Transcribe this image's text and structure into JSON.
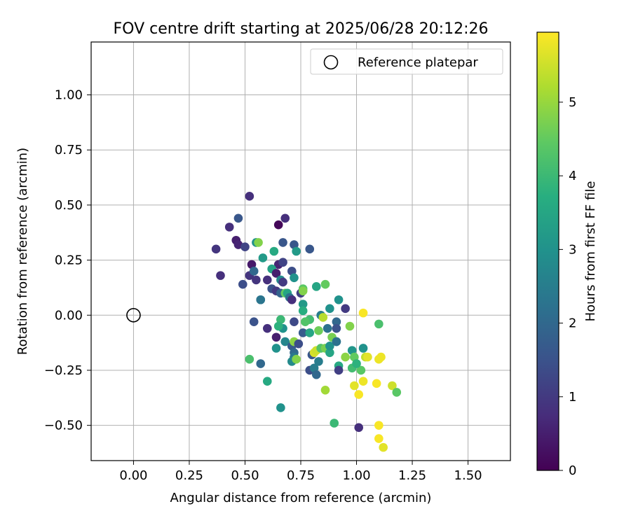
{
  "chart_data": {
    "type": "scatter",
    "title": "FOV centre drift starting at 2025/06/28 20:12:26",
    "xlabel": "Angular distance from reference (arcmin)",
    "ylabel": "Rotation from reference (arcmin)",
    "xlim": [
      -0.19,
      1.69
    ],
    "ylim": [
      -0.66,
      1.24
    ],
    "xticks": [
      0.0,
      0.25,
      0.5,
      0.75,
      1.0,
      1.25,
      1.5
    ],
    "xtick_labels": [
      "0.00",
      "0.25",
      "0.50",
      "0.75",
      "1.00",
      "1.25",
      "1.50"
    ],
    "yticks": [
      -0.5,
      -0.25,
      0.0,
      0.25,
      0.5,
      0.75,
      1.0
    ],
    "ytick_labels": [
      "−0.50",
      "−0.25",
      "0.00",
      "0.25",
      "0.50",
      "0.75",
      "1.00"
    ],
    "grid": true,
    "legend": {
      "placement": "top-right",
      "label": "Reference platepar"
    },
    "colorbar": {
      "label": "Hours from first FF file",
      "range": [
        0,
        5.95
      ],
      "ticks": [
        0,
        1,
        2,
        3,
        4,
        5
      ],
      "tick_labels": [
        "0",
        "1",
        "2",
        "3",
        "4",
        "5"
      ],
      "colormap": "viridis"
    },
    "reference_point": {
      "x": 0.0,
      "y": 0.0
    },
    "points": [
      [
        0.52,
        0.54,
        0.8
      ],
      [
        0.47,
        0.44,
        1.6
      ],
      [
        0.43,
        0.4,
        0.8
      ],
      [
        0.65,
        0.41,
        0.1
      ],
      [
        0.68,
        0.44,
        0.8
      ],
      [
        0.46,
        0.34,
        0.5
      ],
      [
        0.47,
        0.32,
        0.6
      ],
      [
        0.5,
        0.31,
        1.2
      ],
      [
        0.37,
        0.3,
        0.9
      ],
      [
        0.39,
        0.18,
        0.8
      ],
      [
        0.55,
        0.33,
        3.0
      ],
      [
        0.56,
        0.33,
        4.8
      ],
      [
        0.67,
        0.33,
        1.6
      ],
      [
        0.72,
        0.32,
        1.6
      ],
      [
        0.79,
        0.3,
        1.6
      ],
      [
        0.73,
        0.29,
        3.2
      ],
      [
        0.63,
        0.29,
        3.6
      ],
      [
        0.58,
        0.26,
        3.2
      ],
      [
        0.53,
        0.23,
        0.4
      ],
      [
        0.65,
        0.23,
        0.6
      ],
      [
        0.67,
        0.24,
        1.2
      ],
      [
        0.52,
        0.18,
        0.9
      ],
      [
        0.54,
        0.2,
        2.0
      ],
      [
        0.55,
        0.16,
        0.9
      ],
      [
        0.49,
        0.14,
        1.4
      ],
      [
        0.6,
        0.16,
        0.8
      ],
      [
        0.62,
        0.21,
        3.4
      ],
      [
        0.64,
        0.19,
        0.5
      ],
      [
        0.66,
        0.16,
        2.8
      ],
      [
        0.67,
        0.15,
        1.0
      ],
      [
        0.71,
        0.2,
        1.4
      ],
      [
        0.72,
        0.17,
        3.0
      ],
      [
        0.62,
        0.12,
        1.5
      ],
      [
        0.64,
        0.11,
        1.0
      ],
      [
        0.66,
        0.1,
        1.9
      ],
      [
        0.68,
        0.1,
        4.5
      ],
      [
        0.69,
        0.1,
        3.5
      ],
      [
        0.7,
        0.08,
        2.2
      ],
      [
        0.71,
        0.07,
        0.8
      ],
      [
        0.57,
        0.07,
        2.2
      ],
      [
        0.57,
        0.07,
        2.3
      ],
      [
        0.75,
        0.1,
        1.1
      ],
      [
        0.76,
        0.12,
        4.4
      ],
      [
        0.76,
        0.11,
        4.8
      ],
      [
        0.82,
        0.13,
        3.5
      ],
      [
        0.86,
        0.14,
        4.5
      ],
      [
        0.76,
        0.05,
        3.2
      ],
      [
        0.76,
        0.02,
        3.7
      ],
      [
        0.79,
        -0.02,
        4.1
      ],
      [
        0.77,
        -0.03,
        4.3
      ],
      [
        0.88,
        0.03,
        3.0
      ],
      [
        0.84,
        0.0,
        2.5
      ],
      [
        0.85,
        -0.01,
        5.3
      ],
      [
        0.92,
        0.07,
        3.0
      ],
      [
        0.95,
        0.03,
        1.0
      ],
      [
        0.54,
        -0.03,
        1.5
      ],
      [
        0.6,
        -0.06,
        0.8
      ],
      [
        0.64,
        -0.1,
        0.5
      ],
      [
        0.66,
        -0.02,
        4.0
      ],
      [
        0.67,
        -0.06,
        3.0
      ],
      [
        0.65,
        -0.05,
        3.8
      ],
      [
        0.72,
        -0.03,
        1.3
      ],
      [
        0.76,
        -0.08,
        1.7
      ],
      [
        0.79,
        -0.08,
        3.5
      ],
      [
        0.83,
        -0.07,
        4.6
      ],
      [
        0.87,
        -0.06,
        2.2
      ],
      [
        0.91,
        -0.03,
        2.0
      ],
      [
        0.91,
        -0.06,
        1.5
      ],
      [
        0.97,
        -0.05,
        4.8
      ],
      [
        1.03,
        0.01,
        5.9
      ],
      [
        1.1,
        -0.04,
        4.2
      ],
      [
        0.64,
        -0.15,
        3.0
      ],
      [
        0.68,
        -0.12,
        2.7
      ],
      [
        0.71,
        -0.14,
        1.7
      ],
      [
        0.72,
        -0.12,
        4.9
      ],
      [
        0.72,
        -0.17,
        2.0
      ],
      [
        0.74,
        -0.13,
        1.4
      ],
      [
        0.72,
        -0.19,
        2.4
      ],
      [
        0.71,
        -0.21,
        2.8
      ],
      [
        0.73,
        -0.2,
        4.8
      ],
      [
        0.8,
        -0.18,
        1.6
      ],
      [
        0.81,
        -0.17,
        5.6
      ],
      [
        0.82,
        -0.16,
        5.5
      ],
      [
        0.84,
        -0.15,
        4.3
      ],
      [
        0.86,
        -0.15,
        4.7
      ],
      [
        0.88,
        -0.17,
        3.5
      ],
      [
        0.88,
        -0.14,
        3.0
      ],
      [
        0.89,
        -0.1,
        4.7
      ],
      [
        0.91,
        -0.12,
        3.3
      ],
      [
        0.91,
        -0.12,
        2.2
      ],
      [
        0.95,
        -0.19,
        4.9
      ],
      [
        0.98,
        -0.16,
        3.1
      ],
      [
        0.99,
        -0.19,
        4.5
      ],
      [
        1.03,
        -0.15,
        3.0
      ],
      [
        1.04,
        -0.19,
        5.4
      ],
      [
        1.05,
        -0.19,
        5.7
      ],
      [
        1.1,
        -0.2,
        5.8
      ],
      [
        1.11,
        -0.19,
        5.8
      ],
      [
        0.57,
        -0.22,
        2.0
      ],
      [
        0.52,
        -0.2,
        4.2
      ],
      [
        0.6,
        -0.3,
        3.6
      ],
      [
        0.79,
        -0.25,
        1.4
      ],
      [
        0.81,
        -0.24,
        2.5
      ],
      [
        0.82,
        -0.27,
        2.0
      ],
      [
        0.83,
        -0.21,
        2.5
      ],
      [
        0.92,
        -0.23,
        3.6
      ],
      [
        0.92,
        -0.25,
        1.1
      ],
      [
        0.98,
        -0.24,
        4.1
      ],
      [
        1.02,
        -0.25,
        4.4
      ],
      [
        1.0,
        -0.22,
        3.8
      ],
      [
        1.03,
        -0.3,
        5.8
      ],
      [
        0.99,
        -0.32,
        5.7
      ],
      [
        1.09,
        -0.31,
        5.9
      ],
      [
        1.16,
        -0.32,
        5.5
      ],
      [
        1.18,
        -0.35,
        4.4
      ],
      [
        0.86,
        -0.34,
        5.1
      ],
      [
        1.01,
        -0.36,
        5.9
      ],
      [
        0.66,
        -0.42,
        3.0
      ],
      [
        0.9,
        -0.49,
        4.0
      ],
      [
        1.01,
        -0.51,
        0.8
      ],
      [
        1.1,
        -0.5,
        5.9
      ],
      [
        1.1,
        -0.56,
        5.9
      ],
      [
        1.12,
        -0.6,
        5.7
      ]
    ]
  }
}
